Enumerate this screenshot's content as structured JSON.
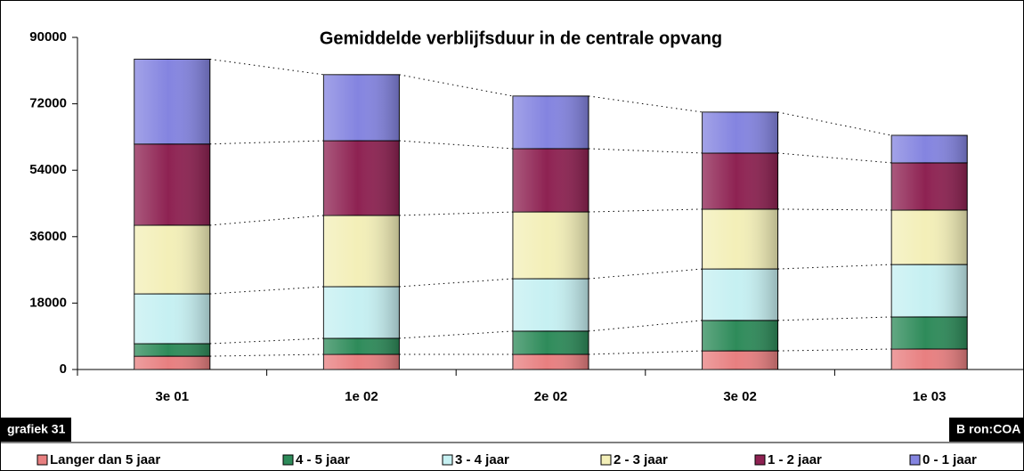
{
  "chart_data": {
    "type": "stacked_bar",
    "title": "Gemiddelde verblijfsduur in de centrale opvang",
    "note": "grafiek 31",
    "source": "B ron:COA",
    "categories": [
      "3e 01",
      "1e 02",
      "2e 02",
      "3e 02",
      "1e 03"
    ],
    "series": [
      {
        "name": "Langer dan 5 jaar",
        "color": "#e87f80",
        "values": [
          3600,
          4100,
          4100,
          5050,
          5550
        ]
      },
      {
        "name": "4 - 5 jaar",
        "color": "#2e8b5a",
        "values": [
          3400,
          4350,
          6300,
          8250,
          8700
        ]
      },
      {
        "name": "3 - 4 jaar",
        "color": "#c6f0f2",
        "values": [
          13500,
          14000,
          14200,
          13950,
          14200
        ]
      },
      {
        "name": "2 - 3 jaar",
        "color": "#f3efb8",
        "values": [
          18600,
          19300,
          18100,
          16200,
          14750
        ]
      },
      {
        "name": "1 - 2 jaar",
        "color": "#8e2252",
        "values": [
          22000,
          20250,
          17150,
          15200,
          12800
        ]
      },
      {
        "name": "0 - 1 jaar",
        "color": "#8484e0",
        "values": [
          23000,
          17900,
          14250,
          11100,
          7450
        ]
      }
    ],
    "ylim": [
      0,
      90000
    ],
    "yticks": [
      0,
      18000,
      36000,
      54000,
      72000,
      90000
    ]
  }
}
